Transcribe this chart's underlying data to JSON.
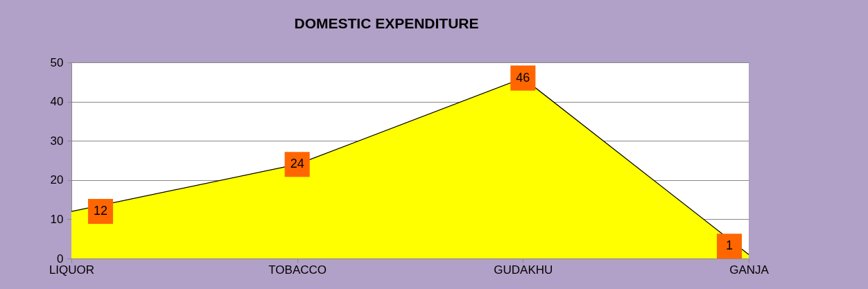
{
  "chart_data": {
    "type": "area",
    "title": "DOMESTIC  EXPENDITURE",
    "categories": [
      "LIQUOR",
      "TOBACCO",
      "GUDAKHU",
      "GANJA"
    ],
    "series": [
      {
        "color": "#ffff00",
        "values": [
          12,
          24,
          46,
          1
        ]
      }
    ],
    "ylim": [
      0,
      50
    ],
    "yticks": [
      0,
      10,
      20,
      30,
      40,
      50
    ],
    "grid": "y",
    "data_labels": true
  }
}
